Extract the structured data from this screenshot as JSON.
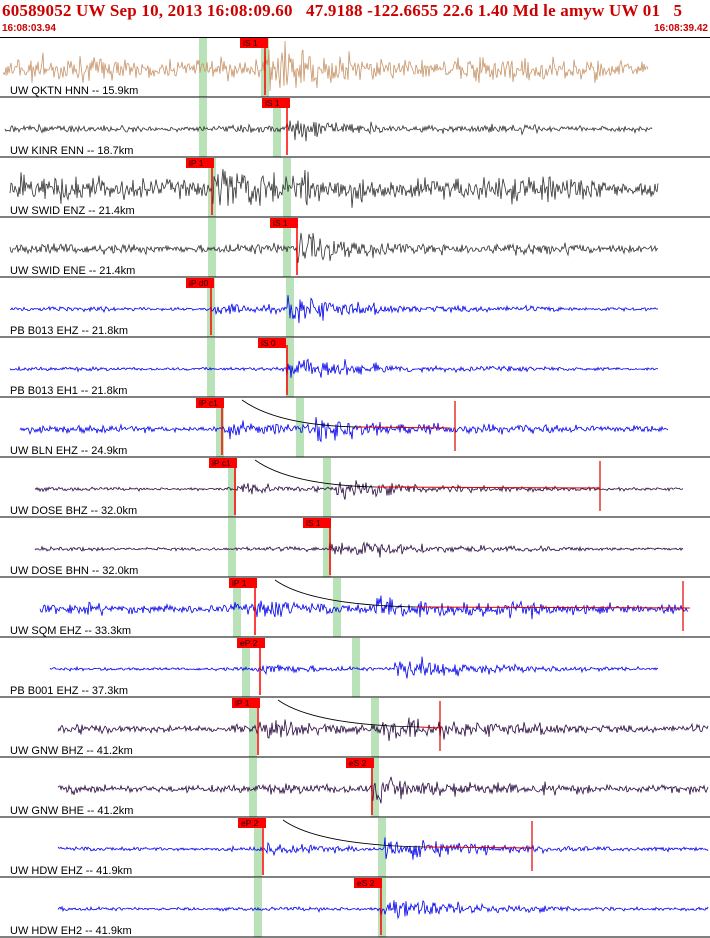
{
  "header": {
    "title": "60589052 UW Sep 10, 2013 16:08:09.60   47.9188 -122.6655 22.6 1.40 Md le amyw UW 01   5",
    "time_start": "16:08:03.94",
    "time_end": "16:08:39.42"
  },
  "colors": {
    "header_text": "#cc0000",
    "pick_label_bg": "#ff0000",
    "pick_line": "#ff0000",
    "pick_window": "#b9e2b9",
    "trace_tan": "#c8956a",
    "trace_dark": "#333333",
    "trace_blue": "#0000ee",
    "trace_purple": "#2a0a40",
    "trace_red": "#e00000",
    "theory_curve": "#000000",
    "divider": "#000000"
  },
  "traces": [
    {
      "label": "UW QKTN HNN -- 15.9km",
      "color": "tan",
      "noise": 0.8,
      "signal": 0.9,
      "pick": "iS 1",
      "theory": false
    },
    {
      "label": "UW KINR ENN -- 18.7km",
      "color": "dark",
      "noise": 0.18,
      "signal": 0.55,
      "pick": "iS 1",
      "theory": false
    },
    {
      "label": "UW SWID ENZ -- 21.4km",
      "color": "dark",
      "noise": 0.85,
      "signal": 0.85,
      "pick": "iP 1",
      "theory": false
    },
    {
      "label": "UW SWID ENE -- 21.4km",
      "color": "dark",
      "noise": 0.3,
      "signal": 0.7,
      "pick": "iS 1",
      "theory": false
    },
    {
      "label": "PB B013 EHZ -- 21.8km",
      "color": "blue",
      "noise": 0.08,
      "signal": 0.9,
      "pick": "iP d0",
      "theory": false
    },
    {
      "label": "PB B013 EH1 -- 21.8km",
      "color": "blue",
      "noise": 0.05,
      "signal": 0.95,
      "pick": "iS 0",
      "theory": false
    },
    {
      "label": "UW BLN EHZ -- 24.9km",
      "color": "blue",
      "noise": 0.2,
      "signal": 0.8,
      "pick": "iP c1",
      "theory": true
    },
    {
      "label": "UW DOSE BHZ -- 32.0km",
      "color": "purple",
      "noise": 0.05,
      "signal": 0.75,
      "pick": "iP c1",
      "theory": true
    },
    {
      "label": "UW DOSE BHN -- 32.0km",
      "color": "purple",
      "noise": 0.05,
      "signal": 0.8,
      "pick": "iS 1",
      "theory": false
    },
    {
      "label": "UW SQM EHZ -- 33.3km",
      "color": "blue",
      "noise": 0.3,
      "signal": 0.75,
      "pick": "iP 1",
      "theory": true
    },
    {
      "label": "PB B001 EHZ -- 37.3km",
      "color": "blue",
      "noise": 0.05,
      "signal": 0.8,
      "pick": "eP 2",
      "theory": false
    },
    {
      "label": "UW GNW BHZ -- 41.2km",
      "color": "purple",
      "noise": 0.25,
      "signal": 0.8,
      "pick": "iP 1",
      "theory": true
    },
    {
      "label": "UW GNW BHE -- 41.2km",
      "color": "purple",
      "noise": 0.25,
      "signal": 0.85,
      "pick": "eS 2",
      "theory": false
    },
    {
      "label": "UW HDW EHZ -- 41.9km",
      "color": "blue",
      "noise": 0.08,
      "signal": 0.8,
      "pick": "eP 2",
      "theory": true
    },
    {
      "label": "UW HDW EH2 -- 41.9km",
      "color": "blue",
      "noise": 0.05,
      "signal": 0.9,
      "pick": "eS 2",
      "theory": false
    }
  ]
}
